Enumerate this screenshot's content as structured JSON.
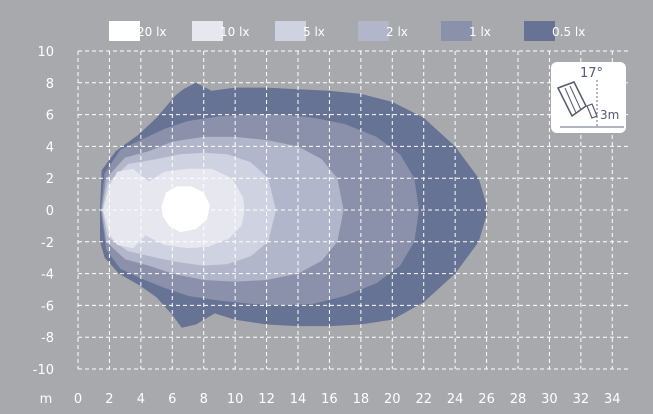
{
  "chart_data": {
    "type": "contour",
    "legend": [
      {
        "label": "20 lx",
        "color": "#ffffff"
      },
      {
        "label": "10 lx",
        "color": "#e6e7ef"
      },
      {
        "label": "5 lx",
        "color": "#cfd2e1"
      },
      {
        "label": "2 lx",
        "color": "#b2b6ca"
      },
      {
        "label": "1 lx",
        "color": "#8c91ab"
      },
      {
        "label": "0.5 lx",
        "color": "#667394"
      }
    ],
    "x_unit_label": "m",
    "x_ticks": [
      0,
      2,
      4,
      6,
      8,
      10,
      12,
      14,
      16,
      18,
      20,
      22,
      24,
      26,
      28,
      30,
      32,
      34
    ],
    "y_ticks": [
      10,
      8,
      6,
      4,
      2,
      0,
      -2,
      -4,
      -6,
      -8,
      -10
    ],
    "x_range": [
      0,
      35
    ],
    "y_range": [
      -10,
      10
    ],
    "grid": true,
    "inset": {
      "angle_label": "17°",
      "height_label": "3m"
    },
    "contours": [
      {
        "level": "0.5 lx",
        "points": [
          [
            1.4,
            0
          ],
          [
            1.5,
            2.5
          ],
          [
            2.4,
            3.7
          ],
          [
            3.8,
            4.7
          ],
          [
            5,
            5.8
          ],
          [
            6.2,
            7.2
          ],
          [
            6.7,
            7.6
          ],
          [
            7.5,
            8
          ],
          [
            8.5,
            7.5
          ],
          [
            10,
            7.7
          ],
          [
            12,
            7.7
          ],
          [
            14,
            7.6
          ],
          [
            16,
            7.5
          ],
          [
            18,
            7.3
          ],
          [
            20,
            6.8
          ],
          [
            22,
            5.8
          ],
          [
            24,
            4
          ],
          [
            25.5,
            2
          ],
          [
            26.1,
            0
          ],
          [
            25.5,
            -2
          ],
          [
            24,
            -4
          ],
          [
            22,
            -5.8
          ],
          [
            20,
            -6.9
          ],
          [
            18,
            -7.2
          ],
          [
            16,
            -7.3
          ],
          [
            14,
            -7.3
          ],
          [
            12,
            -7.2
          ],
          [
            10,
            -6.9
          ],
          [
            8.7,
            -6.5
          ],
          [
            7.5,
            -7.2
          ],
          [
            6.6,
            -7.4
          ],
          [
            6,
            -6.6
          ],
          [
            5,
            -5.5
          ],
          [
            4,
            -4.8
          ],
          [
            2.6,
            -4
          ],
          [
            1.7,
            -3
          ],
          [
            1.4,
            -2
          ]
        ]
      },
      {
        "level": "1 lx",
        "points": [
          [
            1.45,
            0
          ],
          [
            1.7,
            2.3
          ],
          [
            2.7,
            3.8
          ],
          [
            4,
            4.4
          ],
          [
            5.5,
            5.1
          ],
          [
            7,
            5.6
          ],
          [
            9,
            5.9
          ],
          [
            11,
            6
          ],
          [
            13,
            6
          ],
          [
            15,
            5.8
          ],
          [
            17,
            5.4
          ],
          [
            19,
            4.6
          ],
          [
            20.5,
            3.5
          ],
          [
            21.4,
            2
          ],
          [
            21.7,
            0
          ],
          [
            21.4,
            -2
          ],
          [
            20.5,
            -3.5
          ],
          [
            19,
            -4.6
          ],
          [
            17,
            -5.4
          ],
          [
            15,
            -5.9
          ],
          [
            13,
            -6
          ],
          [
            11,
            -5.9
          ],
          [
            9,
            -5.7
          ],
          [
            7,
            -5.4
          ],
          [
            5.5,
            -4.9
          ],
          [
            4,
            -4.3
          ],
          [
            2.7,
            -3.7
          ],
          [
            1.8,
            -2.5
          ]
        ]
      },
      {
        "level": "2 lx",
        "points": [
          [
            1.5,
            0
          ],
          [
            1.8,
            2
          ],
          [
            3,
            3.3
          ],
          [
            4.5,
            3.7
          ],
          [
            6,
            4.3
          ],
          [
            8,
            4.6
          ],
          [
            10,
            4.6
          ],
          [
            12,
            4.4
          ],
          [
            14,
            4
          ],
          [
            15.5,
            3.2
          ],
          [
            16.5,
            2
          ],
          [
            16.9,
            0
          ],
          [
            16.5,
            -2
          ],
          [
            15.5,
            -3.2
          ],
          [
            14,
            -4
          ],
          [
            12,
            -4.4
          ],
          [
            10,
            -4.5
          ],
          [
            8,
            -4.4
          ],
          [
            6,
            -4
          ],
          [
            4.5,
            -3.5
          ],
          [
            3,
            -3.1
          ],
          [
            1.8,
            -2
          ]
        ]
      },
      {
        "level": "5 lx",
        "points": [
          [
            1.55,
            0
          ],
          [
            1.9,
            1.7
          ],
          [
            3.2,
            2.9
          ],
          [
            5,
            3.2
          ],
          [
            6.5,
            3.5
          ],
          [
            8,
            3.6
          ],
          [
            9.5,
            3.5
          ],
          [
            11,
            3
          ],
          [
            12.1,
            2
          ],
          [
            12.6,
            0
          ],
          [
            12.1,
            -2
          ],
          [
            11,
            -2.9
          ],
          [
            9.5,
            -3.4
          ],
          [
            8,
            -3.5
          ],
          [
            6.5,
            -3.3
          ],
          [
            5,
            -3
          ],
          [
            3.2,
            -2.6
          ],
          [
            1.9,
            -1.7
          ]
        ]
      },
      {
        "level": "10 lx",
        "points": [
          [
            1.6,
            0
          ],
          [
            2,
            1.5
          ],
          [
            2.5,
            2.4
          ],
          [
            3.5,
            2.6
          ],
          [
            4.5,
            1.8
          ],
          [
            5.5,
            2.4
          ],
          [
            7,
            2.6
          ],
          [
            8.5,
            2.6
          ],
          [
            9.8,
            2
          ],
          [
            10.5,
            0.8
          ],
          [
            10.6,
            0
          ],
          [
            10.4,
            -1
          ],
          [
            9.6,
            -1.8
          ],
          [
            8.3,
            -2.3
          ],
          [
            7,
            -2.4
          ],
          [
            5.5,
            -2.2
          ],
          [
            4.3,
            -1.6
          ],
          [
            3.5,
            -2.4
          ],
          [
            2.5,
            -2.2
          ],
          [
            2,
            -1.5
          ]
        ]
      },
      {
        "level": "20 lx",
        "points": [
          [
            5.3,
            0.2
          ],
          [
            5.6,
            1.1
          ],
          [
            6.3,
            1.5
          ],
          [
            7.2,
            1.5
          ],
          [
            8,
            1.1
          ],
          [
            8.4,
            0.3
          ],
          [
            8.2,
            -0.6
          ],
          [
            7.5,
            -1.2
          ],
          [
            6.5,
            -1.4
          ],
          [
            5.8,
            -1
          ],
          [
            5.4,
            -0.4
          ]
        ]
      }
    ]
  }
}
